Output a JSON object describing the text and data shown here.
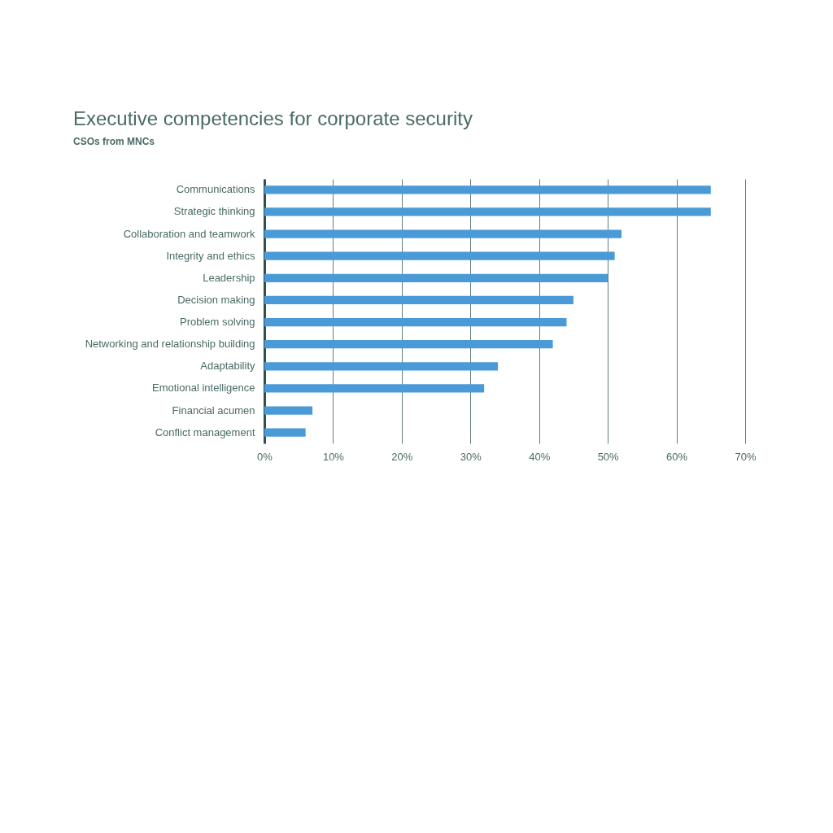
{
  "chart_data": {
    "type": "bar",
    "orientation": "horizontal",
    "title": "Executive competencies for corporate security",
    "subtitle": "CSOs from MNCs",
    "categories": [
      "Communications",
      "Strategic thinking",
      "Collaboration and teamwork",
      "Integrity and ethics",
      "Leadership",
      "Decision making",
      "Problem solving",
      "Networking and relationship building",
      "Adaptability",
      "Emotional intelligence",
      "Financial acumen",
      "Conflict management"
    ],
    "values": [
      65,
      65,
      52,
      51,
      50,
      45,
      44,
      42,
      34,
      32,
      7,
      6
    ],
    "color": "#4a9ad8",
    "xlim": [
      0,
      70
    ],
    "xticks": [
      {
        "value": 0,
        "label": "0%"
      },
      {
        "value": 10,
        "label": "10%"
      },
      {
        "value": 20,
        "label": "20%"
      },
      {
        "value": 30,
        "label": "30%"
      },
      {
        "value": 40,
        "label": "40%"
      },
      {
        "value": 50,
        "label": "50%"
      },
      {
        "value": 60,
        "label": "60%"
      },
      {
        "value": 70,
        "label": "70%"
      }
    ],
    "grid": "x"
  }
}
